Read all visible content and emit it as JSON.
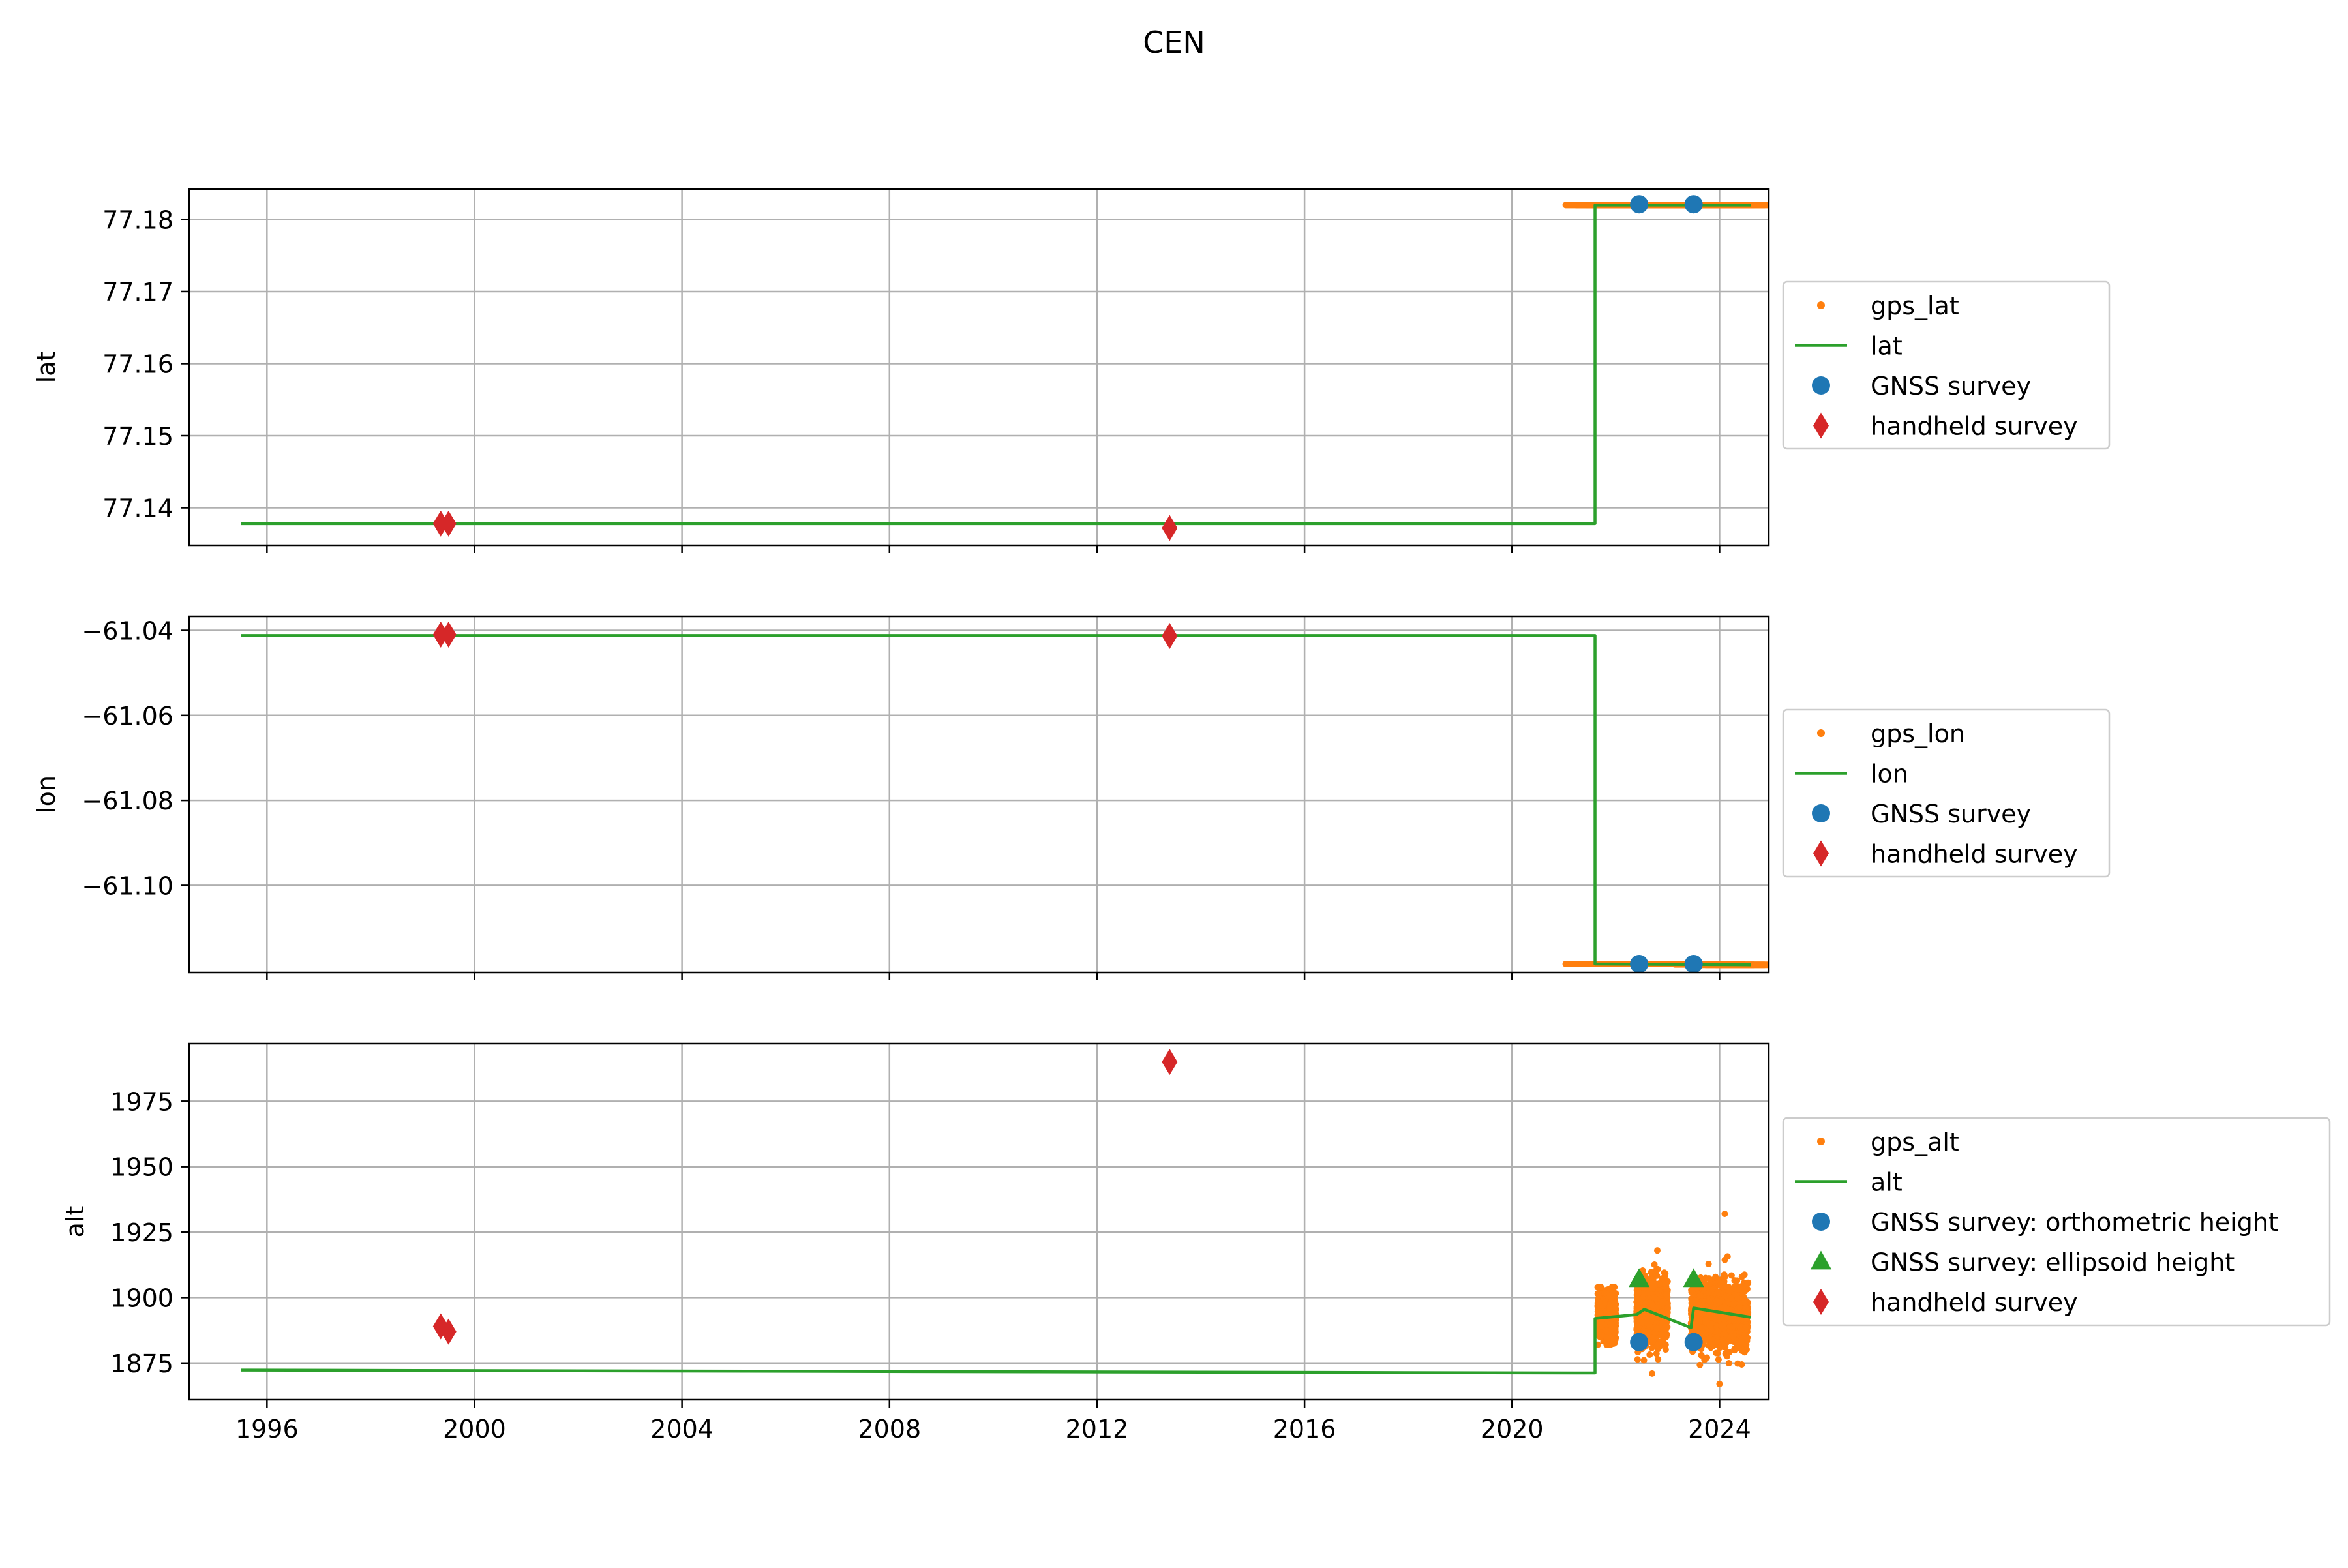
{
  "title": "CEN",
  "colors": {
    "gps": "#ff7f0e",
    "line": "#2ca02c",
    "gnss": "#1f77b4",
    "handheld": "#d62728",
    "grid": "#b0b0b0"
  },
  "chart_data": [
    {
      "type": "line",
      "ylabel": "lat",
      "xlim": [
        1994.5,
        2024.95
      ],
      "ylim": [
        77.1348,
        77.1842
      ],
      "yticks": [
        77.14,
        77.15,
        77.16,
        77.17,
        77.18
      ],
      "ytick_labels": [
        "77.14",
        "77.15",
        "77.16",
        "77.17",
        "77.18"
      ],
      "xticks": [
        1996,
        2000,
        2004,
        2008,
        2012,
        2016,
        2020,
        2024
      ],
      "xtick_labels": [],
      "grid": true,
      "legend_position": "right",
      "legend": [
        {
          "label": "gps_lat",
          "marker": "point",
          "color": "#ff7f0e"
        },
        {
          "label": "lat",
          "marker": "line",
          "color": "#2ca02c"
        },
        {
          "label": "GNSS survey",
          "marker": "circle",
          "color": "#1f77b4"
        },
        {
          "label": "handheld survey",
          "marker": "diamond",
          "color": "#d62728"
        }
      ],
      "series": [
        {
          "name": "gps_lat",
          "style": "points",
          "x": [
            2021.6,
            2021.8,
            2022.0,
            2022.2,
            2022.5,
            2022.8,
            2023.0,
            2023.3,
            2023.7,
            2023.9,
            2024.1,
            2024.3,
            2024.5
          ],
          "y": [
            77.182,
            77.182,
            77.182,
            77.182,
            77.182,
            77.182,
            77.182,
            77.182,
            77.182,
            77.182,
            77.182,
            77.182,
            77.182
          ]
        },
        {
          "name": "lat",
          "style": "line",
          "x": [
            1995.5,
            2021.6,
            2021.6,
            2024.6
          ],
          "y": [
            77.1378,
            77.1378,
            77.182,
            77.182
          ]
        },
        {
          "name": "GNSS survey",
          "style": "circle",
          "x": [
            2022.45,
            2023.5
          ],
          "y": [
            77.1821,
            77.1821
          ]
        },
        {
          "name": "handheld survey",
          "style": "diamond",
          "x": [
            1999.35,
            1999.5,
            2013.4
          ],
          "y": [
            77.1378,
            77.1378,
            77.1372
          ]
        }
      ]
    },
    {
      "type": "line",
      "ylabel": "lon",
      "xlim": [
        1994.5,
        2024.95
      ],
      "ylim": [
        -61.1205,
        -61.0367
      ],
      "yticks": [
        -61.1,
        -61.08,
        -61.06,
        -61.04
      ],
      "ytick_labels": [
        "−61.10",
        "−61.08",
        "−61.06",
        "−61.04"
      ],
      "xticks": [
        1996,
        2000,
        2004,
        2008,
        2012,
        2016,
        2020,
        2024
      ],
      "xtick_labels": [],
      "grid": true,
      "legend_position": "right",
      "legend": [
        {
          "label": "gps_lon",
          "marker": "point",
          "color": "#ff7f0e"
        },
        {
          "label": "lon",
          "marker": "line",
          "color": "#2ca02c"
        },
        {
          "label": "GNSS survey",
          "marker": "circle",
          "color": "#1f77b4"
        },
        {
          "label": "handheld survey",
          "marker": "diamond",
          "color": "#d62728"
        }
      ],
      "series": [
        {
          "name": "gps_lon",
          "style": "points",
          "x": [
            2021.6,
            2021.8,
            2022.0,
            2022.2,
            2022.5,
            2022.8,
            2023.0,
            2023.3,
            2023.7,
            2023.9,
            2024.1,
            2024.3,
            2024.5
          ],
          "y": [
            -61.1185,
            -61.1185,
            -61.1185,
            -61.1185,
            -61.1185,
            -61.1185,
            -61.1185,
            -61.1185,
            -61.1186,
            -61.1186,
            -61.1187,
            -61.1187,
            -61.1187
          ]
        },
        {
          "name": "lon",
          "style": "line",
          "x": [
            1995.5,
            2021.6,
            2021.6,
            2024.6
          ],
          "y": [
            -61.0412,
            -61.0412,
            -61.1185,
            -61.1187
          ]
        },
        {
          "name": "GNSS survey",
          "style": "circle",
          "x": [
            2022.45,
            2023.5
          ],
          "y": [
            -61.1185,
            -61.1185
          ]
        },
        {
          "name": "handheld survey",
          "style": "diamond",
          "x": [
            1999.35,
            1999.5,
            2013.4
          ],
          "y": [
            -61.041,
            -61.041,
            -61.0413
          ]
        }
      ]
    },
    {
      "type": "line",
      "ylabel": "alt",
      "xlim": [
        1994.5,
        2024.95
      ],
      "ylim": [
        1861,
        1997
      ],
      "yticks": [
        1875,
        1900,
        1925,
        1950,
        1975
      ],
      "ytick_labels": [
        "1875",
        "1900",
        "1925",
        "1950",
        "1975"
      ],
      "xticks": [
        1996,
        2000,
        2004,
        2008,
        2012,
        2016,
        2020,
        2024
      ],
      "xtick_labels": [
        "1996",
        "2000",
        "2004",
        "2008",
        "2012",
        "2016",
        "2020",
        "2024"
      ],
      "grid": true,
      "legend_position": "right",
      "legend": [
        {
          "label": "gps_alt",
          "marker": "point",
          "color": "#ff7f0e"
        },
        {
          "label": "alt",
          "marker": "line",
          "color": "#2ca02c"
        },
        {
          "label": "GNSS survey: orthometric height",
          "marker": "circle",
          "color": "#1f77b4"
        },
        {
          "label": "GNSS survey: ellipsoid height",
          "marker": "triangle",
          "color": "#2ca02c"
        },
        {
          "label": "handheld survey",
          "marker": "diamond",
          "color": "#d62728"
        }
      ],
      "series": [
        {
          "name": "gps_alt",
          "style": "scatter-cloud",
          "clusters": [
            {
              "x_range": [
                2021.65,
                2022.0
              ],
              "y_center": 1893,
              "y_spread": 10,
              "extremes": [
                1882,
                1904
              ]
            },
            {
              "x_range": [
                2022.4,
                2023.0
              ],
              "y_center": 1895,
              "y_spread": 14,
              "extremes": [
                1871,
                1918
              ]
            },
            {
              "x_range": [
                2023.45,
                2024.55
              ],
              "y_center": 1893,
              "y_spread": 15,
              "extremes": [
                1867,
                1932
              ]
            }
          ]
        },
        {
          "name": "alt",
          "style": "line",
          "x": [
            1995.5,
            2021.6,
            2021.6,
            2022.4,
            2022.55,
            2023.45,
            2023.5,
            2024.6
          ],
          "y": [
            1872.3,
            1871.2,
            1892.0,
            1893.5,
            1895.5,
            1888.5,
            1896.0,
            1892.5
          ]
        },
        {
          "name": "GNSS survey: orthometric height",
          "style": "circle",
          "x": [
            2022.45,
            2023.5
          ],
          "y": [
            1883,
            1883
          ]
        },
        {
          "name": "GNSS survey: ellipsoid height",
          "style": "triangle",
          "x": [
            2022.45,
            2023.5
          ],
          "y": [
            1907,
            1907
          ]
        },
        {
          "name": "handheld survey",
          "style": "diamond",
          "x": [
            1999.35,
            1999.5,
            2013.4
          ],
          "y": [
            1889,
            1887,
            1990
          ]
        }
      ]
    }
  ]
}
